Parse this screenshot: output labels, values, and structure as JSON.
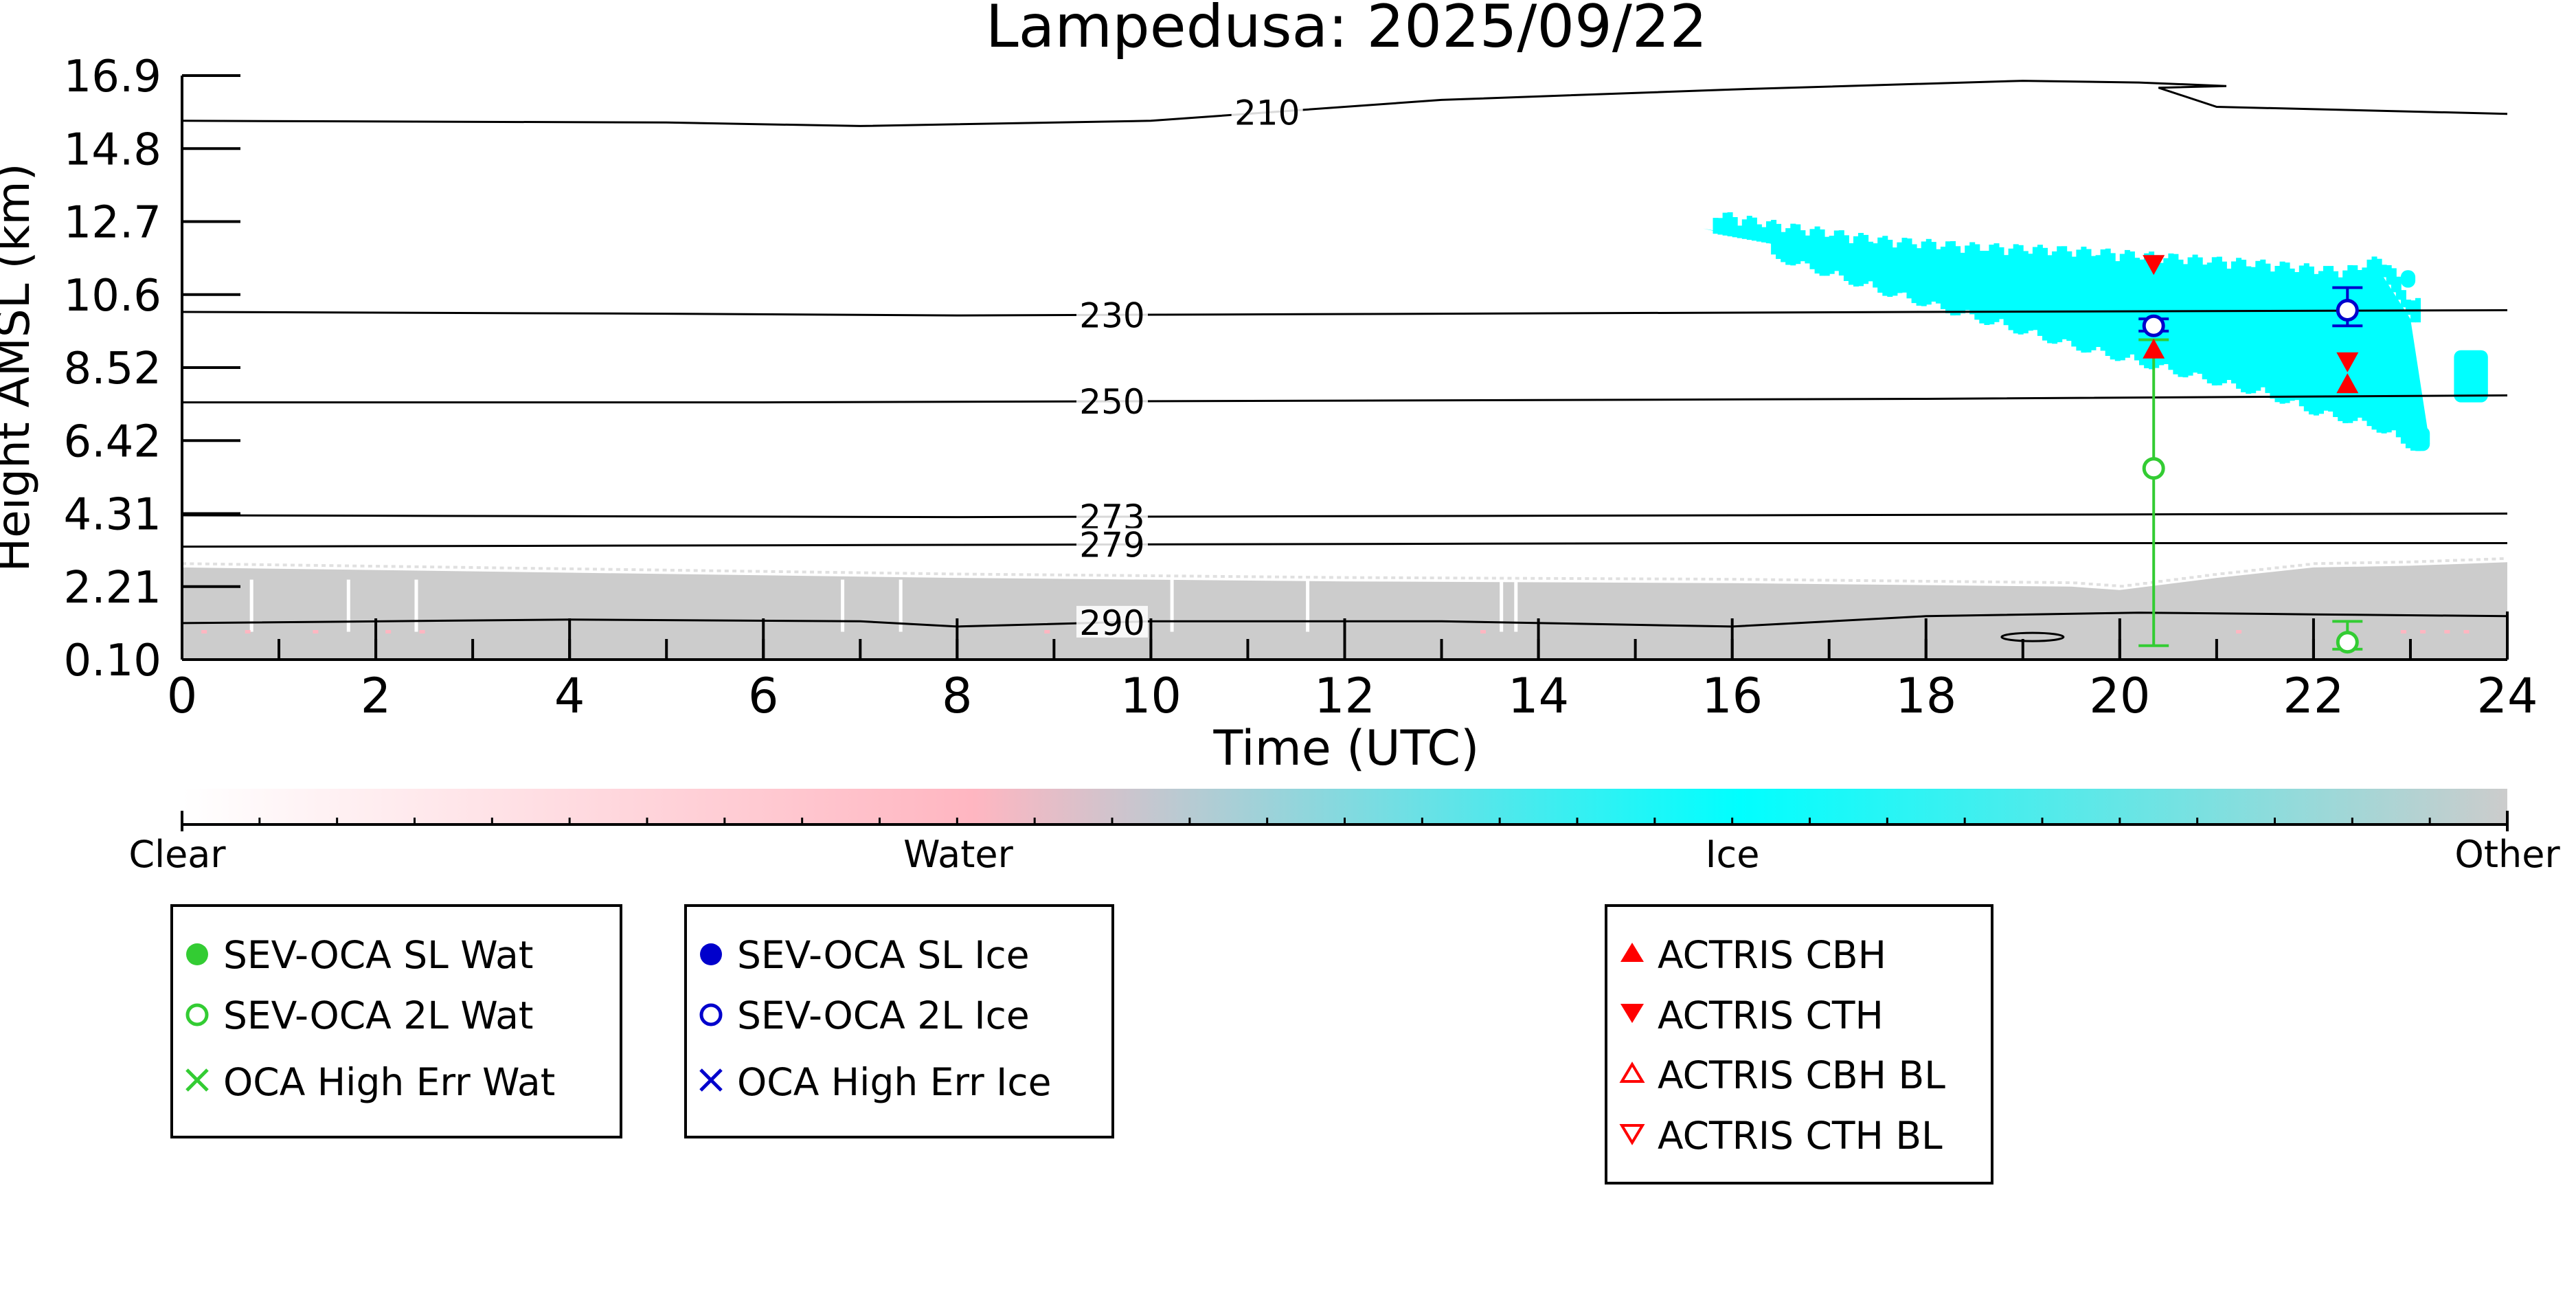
{
  "chart_data": {
    "type": "scatter",
    "title": "Lampedusa: 2025/09/22",
    "xlabel": "Time (UTC)",
    "ylabel": "Height AMSL (km)",
    "xlim": [
      0,
      24
    ],
    "ylim": [
      0.1,
      16.9
    ],
    "x_ticks": [
      "0",
      "2",
      "4",
      "6",
      "8",
      "10",
      "12",
      "14",
      "16",
      "18",
      "20",
      "22",
      "24"
    ],
    "y_ticks": [
      "0.10",
      "2.21",
      "4.31",
      "6.42",
      "8.52",
      "10.6",
      "12.7",
      "14.8",
      "16.9"
    ],
    "colorbar": {
      "labels": [
        "Clear",
        "Water",
        "Ice",
        "Other"
      ],
      "colors": [
        "#ffffff",
        "#ffb6c1",
        "#00ffff",
        "#cccccc"
      ]
    },
    "contours": [
      {
        "label": "210",
        "points": [
          [
            0,
            15.6
          ],
          [
            5,
            15.55
          ],
          [
            7,
            15.45
          ],
          [
            10,
            15.6
          ],
          [
            13,
            16.2
          ],
          [
            16,
            16.5
          ],
          [
            19,
            16.75
          ],
          [
            20.2,
            16.7
          ],
          [
            21.1,
            16.6
          ],
          [
            20.4,
            16.55
          ],
          [
            21,
            16.0
          ],
          [
            24,
            15.8
          ]
        ]
      },
      {
        "label": "230",
        "points": [
          [
            0,
            10.1
          ],
          [
            5,
            10.05
          ],
          [
            8,
            10.0
          ],
          [
            13,
            10.05
          ],
          [
            18,
            10.1
          ],
          [
            24,
            10.15
          ]
        ]
      },
      {
        "label": "250",
        "points": [
          [
            0,
            7.5
          ],
          [
            6,
            7.5
          ],
          [
            12,
            7.55
          ],
          [
            18,
            7.6
          ],
          [
            24,
            7.7
          ]
        ]
      },
      {
        "label": "273",
        "points": [
          [
            0,
            4.25
          ],
          [
            8,
            4.2
          ],
          [
            16,
            4.25
          ],
          [
            24,
            4.3
          ]
        ]
      },
      {
        "label": "279",
        "points": [
          [
            0,
            3.35
          ],
          [
            8,
            3.4
          ],
          [
            16,
            3.45
          ],
          [
            24,
            3.45
          ]
        ]
      },
      {
        "label": "290",
        "points": [
          [
            0,
            1.15
          ],
          [
            4,
            1.25
          ],
          [
            7,
            1.2
          ],
          [
            8,
            1.05
          ],
          [
            10,
            1.2
          ],
          [
            13,
            1.2
          ],
          [
            16,
            1.05
          ],
          [
            18,
            1.35
          ],
          [
            20.2,
            1.45
          ],
          [
            22,
            1.4
          ],
          [
            24,
            1.35
          ]
        ]
      }
    ],
    "series": [
      {
        "name": "SEV-OCA SL Wat",
        "color": "#33cc33",
        "marker": "filled-circle",
        "points": []
      },
      {
        "name": "SEV-OCA 2L Wat",
        "color": "#33cc33",
        "marker": "open-circle",
        "points": [
          {
            "x": 20.35,
            "y": 5.6,
            "err_lo": 0.5,
            "err_hi": 9.3
          },
          {
            "x": 22.35,
            "y": 0.6,
            "err_lo": 0.4,
            "err_hi": 1.2
          }
        ]
      },
      {
        "name": "OCA High Err Wat",
        "color": "#33cc33",
        "marker": "x",
        "points": []
      },
      {
        "name": "SEV-OCA SL Ice",
        "color": "#0000cc",
        "marker": "filled-circle",
        "points": []
      },
      {
        "name": "SEV-OCA 2L Ice",
        "color": "#0000cc",
        "marker": "open-circle",
        "points": [
          {
            "x": 20.35,
            "y": 9.7,
            "err_lo": 9.55,
            "err_hi": 9.9
          },
          {
            "x": 22.35,
            "y": 10.15,
            "err_lo": 9.7,
            "err_hi": 10.8
          }
        ]
      },
      {
        "name": "OCA High Err Ice",
        "color": "#0000cc",
        "marker": "x",
        "points": []
      },
      {
        "name": "ACTRIS CBH",
        "color": "#ff0000",
        "marker": "triangle-up",
        "points": [
          {
            "x": 20.35,
            "y": 9.0
          },
          {
            "x": 22.35,
            "y": 8.0
          }
        ]
      },
      {
        "name": "ACTRIS CTH",
        "color": "#ff0000",
        "marker": "triangle-down",
        "points": [
          {
            "x": 20.35,
            "y": 11.5
          },
          {
            "x": 22.35,
            "y": 8.7
          }
        ]
      },
      {
        "name": "ACTRIS CBH BL",
        "color": "#ff0000",
        "marker": "open-triangle-up",
        "points": []
      },
      {
        "name": "ACTRIS CTH BL",
        "color": "#ff0000",
        "marker": "open-triangle-down",
        "points": []
      }
    ],
    "ice_cloud_region": {
      "class": "Ice",
      "top": [
        [
          15.7,
          12.5
        ],
        [
          16.5,
          12.1
        ],
        [
          17.5,
          11.7
        ],
        [
          18.5,
          11.5
        ],
        [
          19.5,
          11.4
        ],
        [
          20.5,
          11.2
        ],
        [
          21.5,
          11.0
        ],
        [
          22.3,
          10.8
        ],
        [
          22.7,
          11.2
        ],
        [
          23.0,
          9.9
        ]
      ],
      "bottom": [
        [
          16.5,
          12.0
        ],
        [
          17.5,
          11.1
        ],
        [
          18.5,
          10.3
        ],
        [
          19.5,
          9.5
        ],
        [
          20.5,
          8.8
        ],
        [
          21.5,
          8.1
        ],
        [
          22.0,
          7.6
        ],
        [
          22.6,
          7.2
        ],
        [
          23.2,
          6.3
        ]
      ]
    },
    "ice_cloud_patch_2": {
      "class": "Ice",
      "top": [
        [
          22.75,
          11.2
        ],
        [
          23.0,
          11.5
        ]
      ],
      "bottom": []
    },
    "other_region_top": [
      [
        0,
        2.75
      ],
      [
        4,
        2.6
      ],
      [
        8,
        2.45
      ],
      [
        12,
        2.35
      ],
      [
        16,
        2.3
      ],
      [
        19.5,
        2.2
      ],
      [
        20,
        2.1
      ],
      [
        21,
        2.45
      ],
      [
        22,
        2.75
      ],
      [
        23,
        2.8
      ],
      [
        24,
        2.9
      ]
    ],
    "other_region_patch": {
      "class": "Other",
      "top": []
    },
    "legend_groups": [
      [
        "SEV-OCA SL Wat",
        "SEV-OCA 2L Wat",
        "OCA High Err Wat"
      ],
      [
        "SEV-OCA SL Ice",
        "SEV-OCA 2L Ice",
        "OCA High Err Ice"
      ],
      [
        "ACTRIS CBH",
        "ACTRIS CTH",
        "ACTRIS CBH BL",
        "ACTRIS CTH BL"
      ]
    ]
  }
}
